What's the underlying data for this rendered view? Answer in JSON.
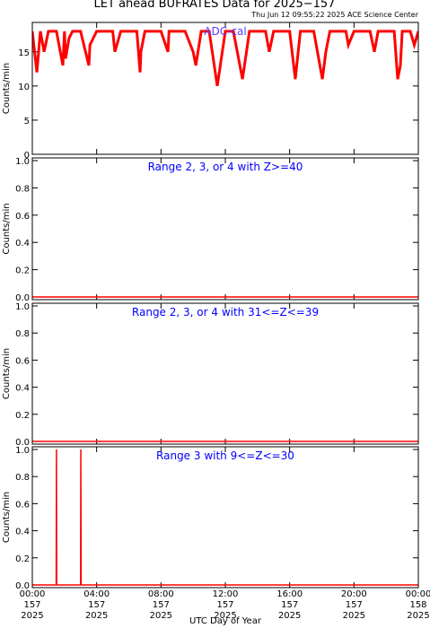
{
  "title": "LET ahead BUFRATES Data for 2025−157",
  "subtitle": "Thu Jun 12 09:55:22 2025 ACE Science Center",
  "xlabel": "UTC Day of Year",
  "chart_data": [
    {
      "type": "line",
      "ylabel": "Counts/min",
      "annotation": "ADC-cal",
      "annotation_color": "#5a3cff",
      "color": "#ff0000",
      "x": [
        0,
        17,
        30,
        44,
        60,
        90,
        114,
        120,
        124,
        137,
        150,
        180,
        211,
        215,
        240,
        270,
        300,
        308,
        330,
        360,
        390,
        402,
        405,
        420,
        450,
        480,
        506,
        510,
        540,
        570,
        600,
        610,
        630,
        660,
        690,
        720,
        750,
        784,
        810,
        840,
        870,
        884,
        900,
        930,
        960,
        981,
        1000,
        1020,
        1050,
        1082,
        1095,
        1110,
        1140,
        1170,
        1179,
        1200,
        1230,
        1260,
        1276,
        1290,
        1320,
        1350,
        1363,
        1373,
        1380,
        1410,
        1425,
        1440
      ],
      "values": [
        18,
        12,
        18,
        15,
        18,
        18,
        13,
        18,
        14,
        17,
        18,
        18,
        13,
        16,
        18,
        18,
        18,
        15,
        18,
        18,
        18,
        12,
        15,
        18,
        18,
        18,
        15,
        18,
        18,
        18,
        15,
        13,
        18,
        18,
        10,
        18,
        18,
        11,
        18,
        18,
        18,
        15,
        18,
        18,
        18,
        11,
        18,
        18,
        18,
        11,
        15,
        18,
        18,
        18,
        16,
        18,
        18,
        18,
        15,
        18,
        18,
        18,
        11,
        13,
        18,
        18,
        16,
        18
      ],
      "xlim": [
        0,
        1440
      ],
      "xticks": [
        0,
        240,
        480,
        720,
        960,
        1200,
        1440
      ],
      "ylim": [
        0,
        19.3
      ],
      "yticks": [
        0,
        5,
        10,
        15
      ]
    },
    {
      "type": "line",
      "ylabel": "Counts/min",
      "annotation": "Range 2, 3, or 4 with Z>=40",
      "annotation_color": "#0000ff",
      "color": "#ff0000",
      "x": [
        0,
        1440
      ],
      "values": [
        0,
        0
      ],
      "xlim": [
        0,
        1440
      ],
      "xticks": [
        0,
        240,
        480,
        720,
        960,
        1200,
        1440
      ],
      "ylim": [
        -0.02,
        1.02
      ],
      "yticks": [
        {
          "value": 0,
          "label": "0.0"
        },
        {
          "value": 0.2,
          "label": "0.2"
        },
        {
          "value": 0.4,
          "label": "0.4"
        },
        {
          "value": 0.6,
          "label": "0.6"
        },
        {
          "value": 0.8,
          "label": "0.8"
        },
        {
          "value": 1,
          "label": "1.0"
        }
      ]
    },
    {
      "type": "line",
      "ylabel": "Counts/min",
      "annotation": "Range 2, 3, or 4 with 31<=Z<=39",
      "annotation_color": "#0000ff",
      "color": "#ff0000",
      "x": [
        0,
        1440
      ],
      "values": [
        0,
        0
      ],
      "xlim": [
        0,
        1440
      ],
      "xticks": [
        0,
        240,
        480,
        720,
        960,
        1200,
        1440
      ],
      "ylim": [
        -0.02,
        1.02
      ],
      "yticks": [
        {
          "value": 0,
          "label": "0.0"
        },
        {
          "value": 0.2,
          "label": "0.2"
        },
        {
          "value": 0.4,
          "label": "0.4"
        },
        {
          "value": 0.6,
          "label": "0.6"
        },
        {
          "value": 0.8,
          "label": "0.8"
        },
        {
          "value": 1,
          "label": "1.0"
        }
      ]
    },
    {
      "type": "line",
      "ylabel": "Counts/min",
      "annotation": "Range 3 with 9<=Z<=30",
      "annotation_color": "#0000ff",
      "color": "#ff0000",
      "x": [
        0,
        89,
        90,
        91,
        180,
        181,
        182,
        1440
      ],
      "values": [
        0,
        0,
        1,
        0,
        0,
        1,
        0,
        0
      ],
      "xlim": [
        0,
        1440
      ],
      "xticks": [
        {
          "value": 0,
          "label": [
            "00:00",
            "157",
            "2025"
          ]
        },
        {
          "value": 240,
          "label": [
            "04:00",
            "157",
            "2025"
          ]
        },
        {
          "value": 480,
          "label": [
            "08:00",
            "157",
            "2025"
          ]
        },
        {
          "value": 720,
          "label": [
            "12:00",
            "157",
            "2025"
          ]
        },
        {
          "value": 960,
          "label": [
            "16:00",
            "157",
            "2025"
          ]
        },
        {
          "value": 1200,
          "label": [
            "20:00",
            "157",
            "2025"
          ]
        },
        {
          "value": 1440,
          "label": [
            "00:00",
            "158",
            "2025"
          ]
        }
      ],
      "ylim": [
        -0.02,
        1.02
      ],
      "yticks": [
        {
          "value": 0,
          "label": "0.0"
        },
        {
          "value": 0.2,
          "label": "0.2"
        },
        {
          "value": 0.4,
          "label": "0.4"
        },
        {
          "value": 0.6,
          "label": "0.6"
        },
        {
          "value": 0.8,
          "label": "0.8"
        },
        {
          "value": 1,
          "label": "1.0"
        }
      ]
    }
  ]
}
